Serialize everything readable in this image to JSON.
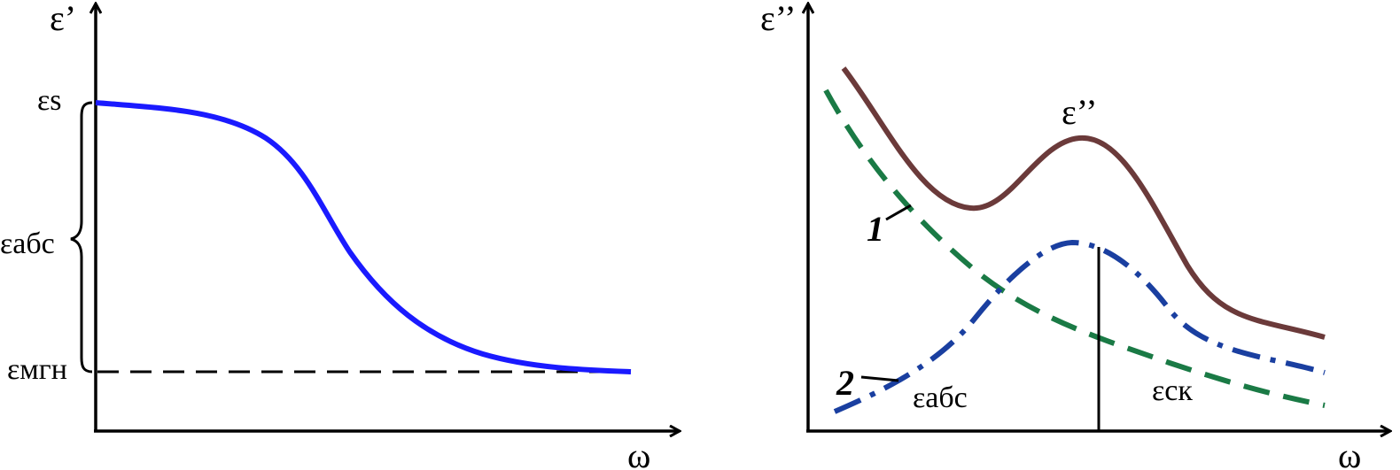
{
  "left_plot": {
    "y_axis_label": "ε’",
    "x_axis_label": "ω",
    "label_es": "εs",
    "label_eabs": "εабс",
    "label_emgn": "εмгн",
    "curve_color": "#1a1aff"
  },
  "right_plot": {
    "y_axis_label": "ε’’",
    "x_axis_label": "ω",
    "curve_label_total": "ε’’",
    "label_1": "1",
    "label_2": "2",
    "label_eabs": "εабс",
    "label_esk": "εск",
    "total_curve_color": "#6b3a3a",
    "curve1_color": "#1a7a45",
    "curve2_color": "#1a3fa0"
  }
}
